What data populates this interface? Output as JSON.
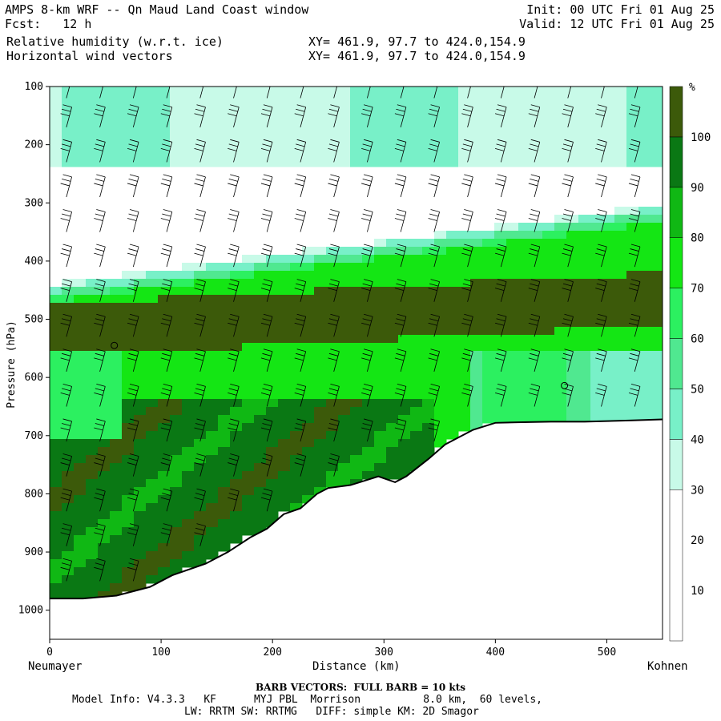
{
  "header": {
    "title": "AMPS 8-km WRF -- Qn Maud Land Coast window",
    "fcst": "Fcst:   12 h",
    "init": "Init: 00 UTC Fri 01 Aug 25",
    "valid": "Valid: 12 UTC Fri 01 Aug 25",
    "var1": "Relative humidity (w.r.t. ice)",
    "var2": "Horizontal wind vectors",
    "xy1": "XY= 461.9, 97.7 to 424.0,154.9",
    "xy2": "XY= 461.9, 97.7 to 424.0,154.9"
  },
  "footer": {
    "barb_note": "BARB VECTORS:  FULL BARB = 10 kts",
    "model1": "Model Info: V4.3.3   KF      MYJ PBL  Morrison          8.0 km,  60 levels,",
    "model2": "LW: RRTM SW: RRTMG   DIFF: simple KM: 2D Smagor",
    "left_location": "Neumayer",
    "right_location": "Kohnen"
  },
  "chart_data": {
    "type": "heatmap",
    "xlabel": "Distance (km)",
    "ylabel": "Pressure (hPa)",
    "xlim": [
      0,
      550
    ],
    "ylim": [
      1050,
      100
    ],
    "x_ticks": [
      0,
      100,
      200,
      300,
      400,
      500
    ],
    "y_ticks": [
      100,
      200,
      300,
      400,
      500,
      600,
      700,
      800,
      900,
      1000
    ],
    "colorbar": {
      "unit": "%",
      "ticks": [
        10,
        20,
        30,
        40,
        50,
        60,
        70,
        80,
        90,
        100
      ],
      "bins": [
        {
          "min": 0,
          "max": 30,
          "color": "#ffffff"
        },
        {
          "min": 30,
          "max": 40,
          "color": "#c8fae8"
        },
        {
          "min": 40,
          "max": 50,
          "color": "#78f0c8"
        },
        {
          "min": 50,
          "max": 60,
          "color": "#50e890"
        },
        {
          "min": 60,
          "max": 70,
          "color": "#2cf060"
        },
        {
          "min": 70,
          "max": 80,
          "color": "#14e614"
        },
        {
          "min": 80,
          "max": 90,
          "color": "#10b814"
        },
        {
          "min": 90,
          "max": 100,
          "color": "#0a7814"
        },
        {
          "min": 100,
          "max": 110,
          "color": "#3c5a0a"
        }
      ]
    },
    "terrain_surface": {
      "x": [
        0,
        30,
        60,
        90,
        110,
        140,
        160,
        180,
        195,
        210,
        225,
        240,
        250,
        270,
        295,
        310,
        320,
        340,
        355,
        380,
        400,
        420,
        450,
        480,
        520,
        550
      ],
      "p": [
        980,
        980,
        975,
        960,
        940,
        920,
        900,
        875,
        860,
        835,
        825,
        800,
        790,
        785,
        770,
        780,
        770,
        740,
        715,
        690,
        678,
        677,
        676,
        676,
        674,
        672
      ]
    },
    "markers": [
      {
        "x": 58,
        "p": 545
      },
      {
        "x": 462,
        "p": 614
      }
    ],
    "barb_columns_km": [
      15,
      45,
      75,
      105,
      135,
      165,
      195,
      225,
      255,
      285,
      315,
      345,
      375,
      405,
      435,
      465,
      495,
      525
    ],
    "barb_levels_hPa": [
      120,
      170,
      230,
      290,
      350,
      410,
      470,
      530,
      590,
      650,
      710,
      770,
      830,
      890,
      950
    ]
  }
}
